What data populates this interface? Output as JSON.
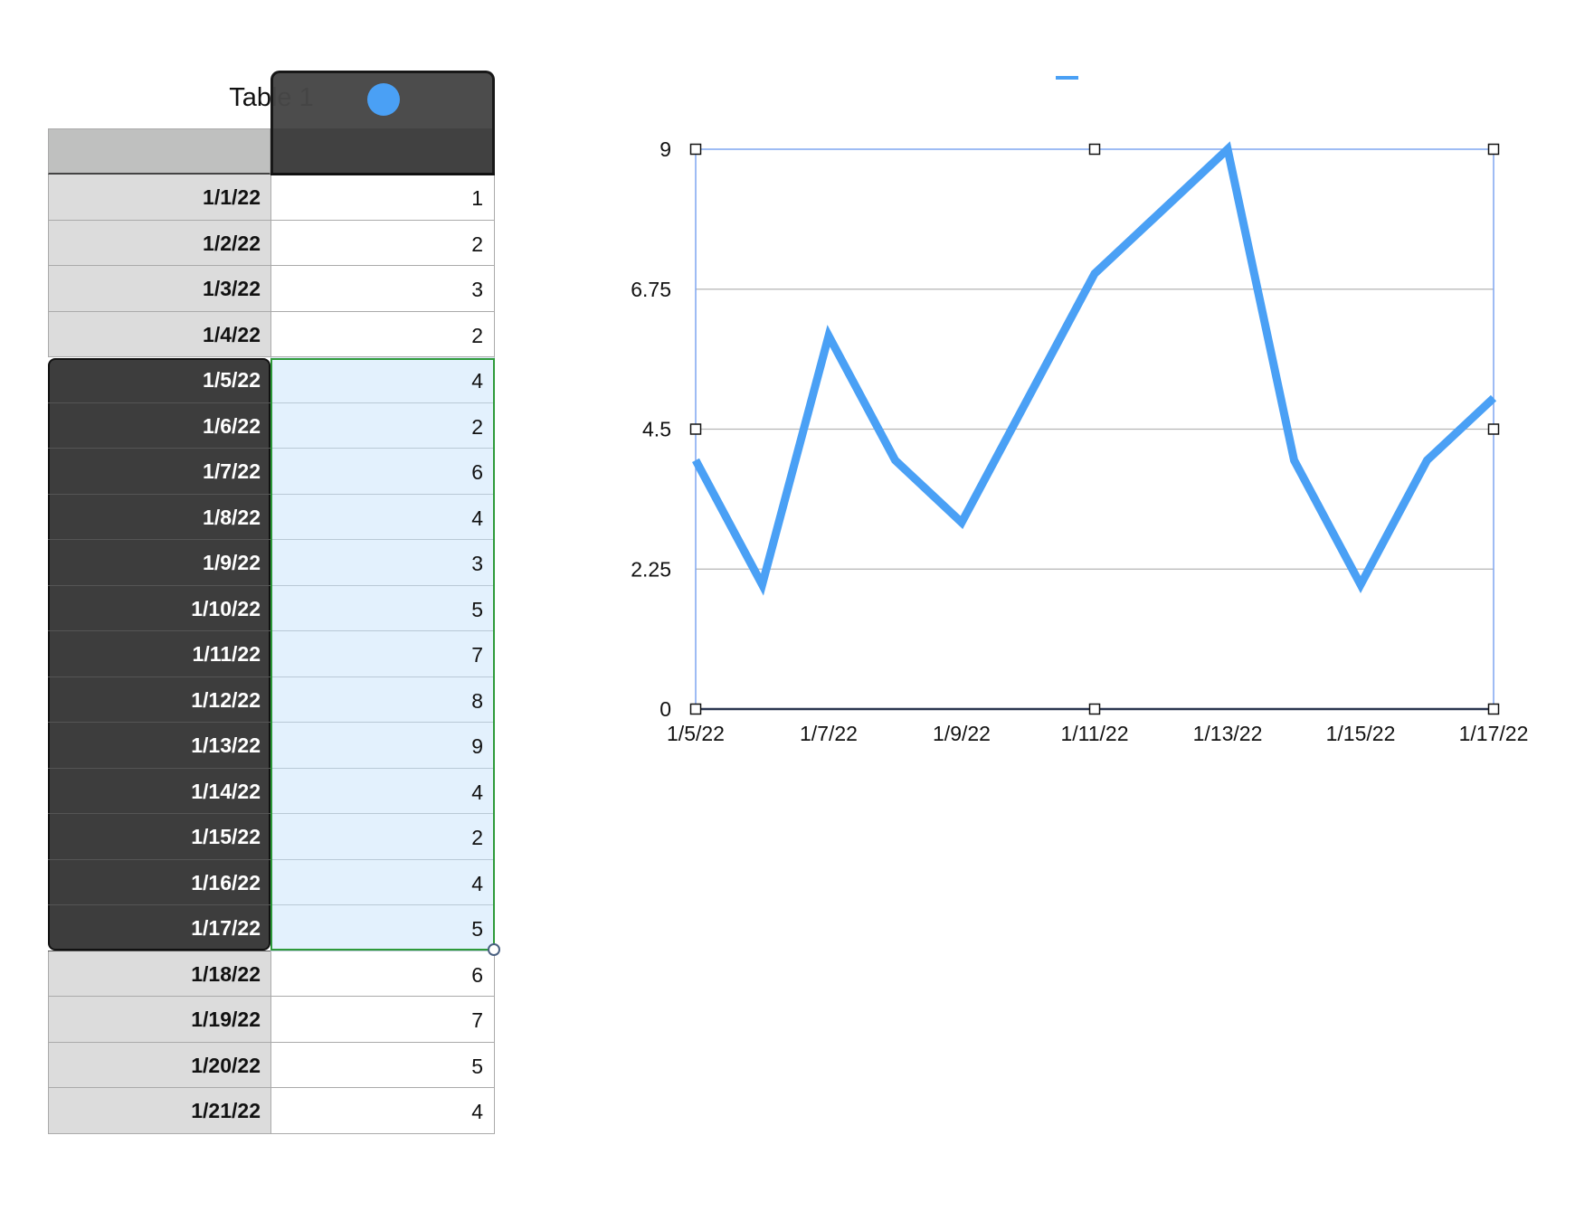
{
  "table": {
    "title": "Table 1",
    "rows": [
      {
        "date": "1/1/22",
        "value": "1"
      },
      {
        "date": "1/2/22",
        "value": "2"
      },
      {
        "date": "1/3/22",
        "value": "3"
      },
      {
        "date": "1/4/22",
        "value": "2"
      },
      {
        "date": "1/5/22",
        "value": "4"
      },
      {
        "date": "1/6/22",
        "value": "2"
      },
      {
        "date": "1/7/22",
        "value": "6"
      },
      {
        "date": "1/8/22",
        "value": "4"
      },
      {
        "date": "1/9/22",
        "value": "3"
      },
      {
        "date": "1/10/22",
        "value": "5"
      },
      {
        "date": "1/11/22",
        "value": "7"
      },
      {
        "date": "1/12/22",
        "value": "8"
      },
      {
        "date": "1/13/22",
        "value": "9"
      },
      {
        "date": "1/14/22",
        "value": "4"
      },
      {
        "date": "1/15/22",
        "value": "2"
      },
      {
        "date": "1/16/22",
        "value": "4"
      },
      {
        "date": "1/17/22",
        "value": "5"
      },
      {
        "date": "1/18/22",
        "value": "6"
      },
      {
        "date": "1/19/22",
        "value": "7"
      },
      {
        "date": "1/20/22",
        "value": "5"
      },
      {
        "date": "1/21/22",
        "value": "4"
      }
    ],
    "selected_range": [
      "1/5/22",
      "1/17/22"
    ]
  },
  "colors": {
    "series": "#4aa0f5",
    "selection_fill": "#e3f1fd",
    "selection_border": "#2e9a3a",
    "chart_frame": "#7fa6f0"
  },
  "chart_data": {
    "type": "line",
    "x": [
      "1/5/22",
      "1/6/22",
      "1/7/22",
      "1/8/22",
      "1/9/22",
      "1/10/22",
      "1/11/22",
      "1/12/22",
      "1/13/22",
      "1/14/22",
      "1/15/22",
      "1/16/22",
      "1/17/22"
    ],
    "series": [
      {
        "values": [
          4,
          2,
          6,
          4,
          3,
          5,
          7,
          8,
          9,
          4,
          2,
          4,
          5
        ]
      }
    ],
    "xticks": [
      "1/5/22",
      "1/7/22",
      "1/9/22",
      "1/11/22",
      "1/13/22",
      "1/15/22",
      "1/17/22"
    ],
    "yticks": [
      "0",
      "2.25",
      "4.5",
      "6.75",
      "9"
    ],
    "ylim": [
      0,
      9
    ],
    "grid": true,
    "legend": "top"
  }
}
